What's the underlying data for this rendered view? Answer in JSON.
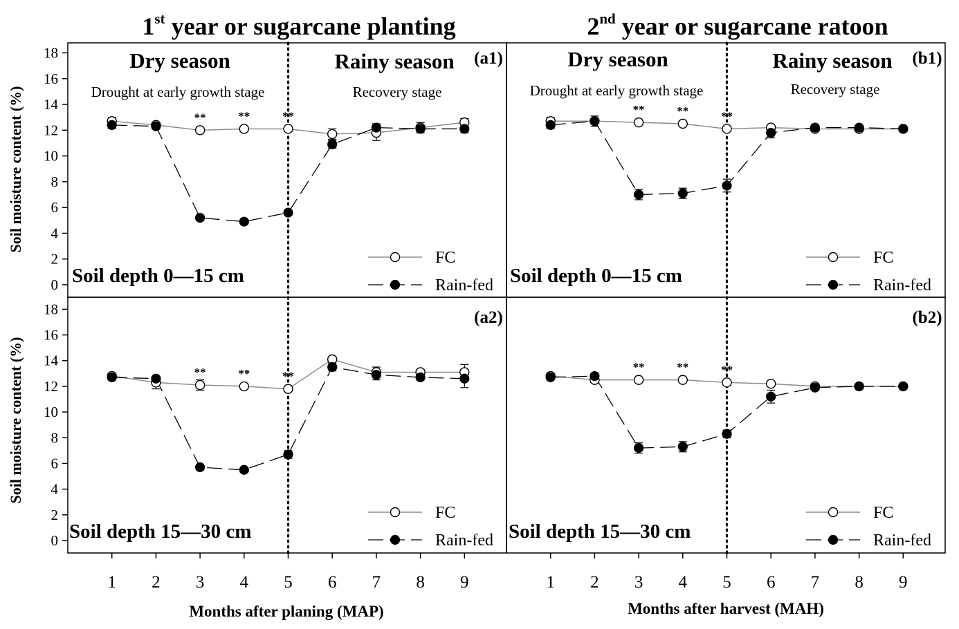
{
  "figure": {
    "colors": {
      "fc_line": "#8c8c8c",
      "rainfed_line": "#000000",
      "fc_marker_fill": "#ffffff",
      "rainfed_marker_fill": "#000000",
      "axis": "#000000"
    }
  },
  "left": {
    "title_ordinal": "1",
    "title_sup": "st",
    "title_rest": " year or sugarcane planting",
    "xlabel": "Months after planing (MAP)"
  },
  "right": {
    "title_ordinal": "2",
    "title_sup": "nd",
    "title_rest": " year or sugarcane ratoon",
    "xlabel": "Months after harvest (MAH)"
  },
  "ylabel": "Soil moisture content (%)",
  "season": {
    "dry": "Dry season",
    "rainy": "Rainy season",
    "dry_sub": "Drought at early growth stage",
    "rainy_sub": "Recovery stage"
  },
  "legend": {
    "fc": "FC",
    "rainfed": "Rain-fed"
  },
  "chart_data": [
    {
      "type": "line",
      "panel": "(a1)",
      "depth_label": "Soil depth 0—15 cm",
      "x": [
        1,
        2,
        3,
        4,
        5,
        6,
        7,
        8,
        9
      ],
      "xlim": [
        0,
        10
      ],
      "ylim": [
        0,
        19
      ],
      "yticks": [
        0,
        2,
        4,
        6,
        8,
        10,
        12,
        14,
        16,
        18
      ],
      "divider_x": 5,
      "significance": [
        {
          "x": 3,
          "label": "**"
        },
        {
          "x": 4,
          "label": "**"
        },
        {
          "x": 5,
          "label": "**"
        }
      ],
      "series": [
        {
          "name": "FC",
          "values": [
            12.7,
            12.4,
            12.0,
            12.1,
            12.1,
            11.7,
            11.8,
            12.2,
            12.6
          ],
          "errors": [
            0.3,
            0.2,
            0.2,
            0.2,
            0.2,
            0.4,
            0.6,
            0.4,
            0.3
          ]
        },
        {
          "name": "Rain-fed",
          "values": [
            12.4,
            12.3,
            5.2,
            4.9,
            5.6,
            10.9,
            12.2,
            12.1,
            12.1
          ],
          "errors": [
            0.3,
            0.2,
            0.2,
            0.2,
            0.2,
            0.3,
            0.3,
            0.3,
            0.3
          ]
        }
      ]
    },
    {
      "type": "line",
      "panel": "(b1)",
      "depth_label": "Soil depth 0—15 cm",
      "x": [
        1,
        2,
        3,
        4,
        5,
        6,
        7,
        8,
        9
      ],
      "xlim": [
        0,
        10
      ],
      "ylim": [
        0,
        19
      ],
      "yticks": [
        0,
        2,
        4,
        6,
        8,
        10,
        12,
        14,
        16,
        18
      ],
      "divider_x": 5,
      "significance": [
        {
          "x": 3,
          "label": "**"
        },
        {
          "x": 4,
          "label": "**"
        },
        {
          "x": 5,
          "label": "**"
        }
      ],
      "series": [
        {
          "name": "FC",
          "values": [
            12.7,
            12.7,
            12.6,
            12.5,
            12.1,
            12.2,
            12.1,
            12.1,
            12.1
          ],
          "errors": [
            0.3,
            0.2,
            0.2,
            0.2,
            0.2,
            0.2,
            0.2,
            0.2,
            0.2
          ]
        },
        {
          "name": "Rain-fed",
          "values": [
            12.4,
            12.7,
            7.0,
            7.1,
            7.7,
            11.8,
            12.2,
            12.2,
            12.1
          ],
          "errors": [
            0.3,
            0.4,
            0.4,
            0.4,
            0.5,
            0.4,
            0.2,
            0.2,
            0.2
          ]
        }
      ]
    },
    {
      "type": "line",
      "panel": "(a2)",
      "depth_label": "Soil depth 15—30 cm",
      "x": [
        1,
        2,
        3,
        4,
        5,
        6,
        7,
        8,
        9
      ],
      "xlim": [
        0,
        10
      ],
      "ylim": [
        -1,
        19
      ],
      "yticks": [
        0,
        2,
        4,
        6,
        8,
        10,
        12,
        14,
        16,
        18
      ],
      "divider_x": 5,
      "significance": [
        {
          "x": 3,
          "label": "**"
        },
        {
          "x": 4,
          "label": "**"
        },
        {
          "x": 5,
          "label": "**"
        }
      ],
      "series": [
        {
          "name": "FC",
          "values": [
            12.8,
            12.3,
            12.1,
            12.0,
            11.8,
            14.1,
            13.1,
            13.1,
            13.1
          ],
          "errors": [
            0.2,
            0.5,
            0.4,
            0.2,
            0.2,
            0.2,
            0.4,
            0.2,
            0.6
          ]
        },
        {
          "name": "Rain-fed",
          "values": [
            12.7,
            12.6,
            5.7,
            5.5,
            6.7,
            13.5,
            12.9,
            12.7,
            12.6
          ],
          "errors": [
            0.2,
            0.2,
            0.2,
            0.2,
            0.3,
            0.3,
            0.4,
            0.2,
            0.7
          ]
        }
      ]
    },
    {
      "type": "line",
      "panel": "(b2)",
      "depth_label": "Soil depth 15—30 cm",
      "x": [
        1,
        2,
        3,
        4,
        5,
        6,
        7,
        8,
        9
      ],
      "xlim": [
        0,
        10
      ],
      "ylim": [
        -1,
        19
      ],
      "yticks": [
        0,
        2,
        4,
        6,
        8,
        10,
        12,
        14,
        16,
        18
      ],
      "divider_x": 5,
      "significance": [
        {
          "x": 3,
          "label": "**"
        },
        {
          "x": 4,
          "label": "**"
        },
        {
          "x": 5,
          "label": "**"
        }
      ],
      "series": [
        {
          "name": "FC",
          "values": [
            12.8,
            12.5,
            12.5,
            12.5,
            12.3,
            12.2,
            12.0,
            12.0,
            12.0
          ],
          "errors": [
            0.2,
            0.2,
            0.2,
            0.2,
            0.2,
            0.2,
            0.2,
            0.2,
            0.2
          ]
        },
        {
          "name": "Rain-fed",
          "values": [
            12.7,
            12.8,
            7.2,
            7.3,
            8.3,
            11.2,
            11.9,
            12.0,
            12.0
          ],
          "errors": [
            0.2,
            0.2,
            0.4,
            0.4,
            0.3,
            0.5,
            0.2,
            0.2,
            0.2
          ]
        }
      ]
    }
  ]
}
